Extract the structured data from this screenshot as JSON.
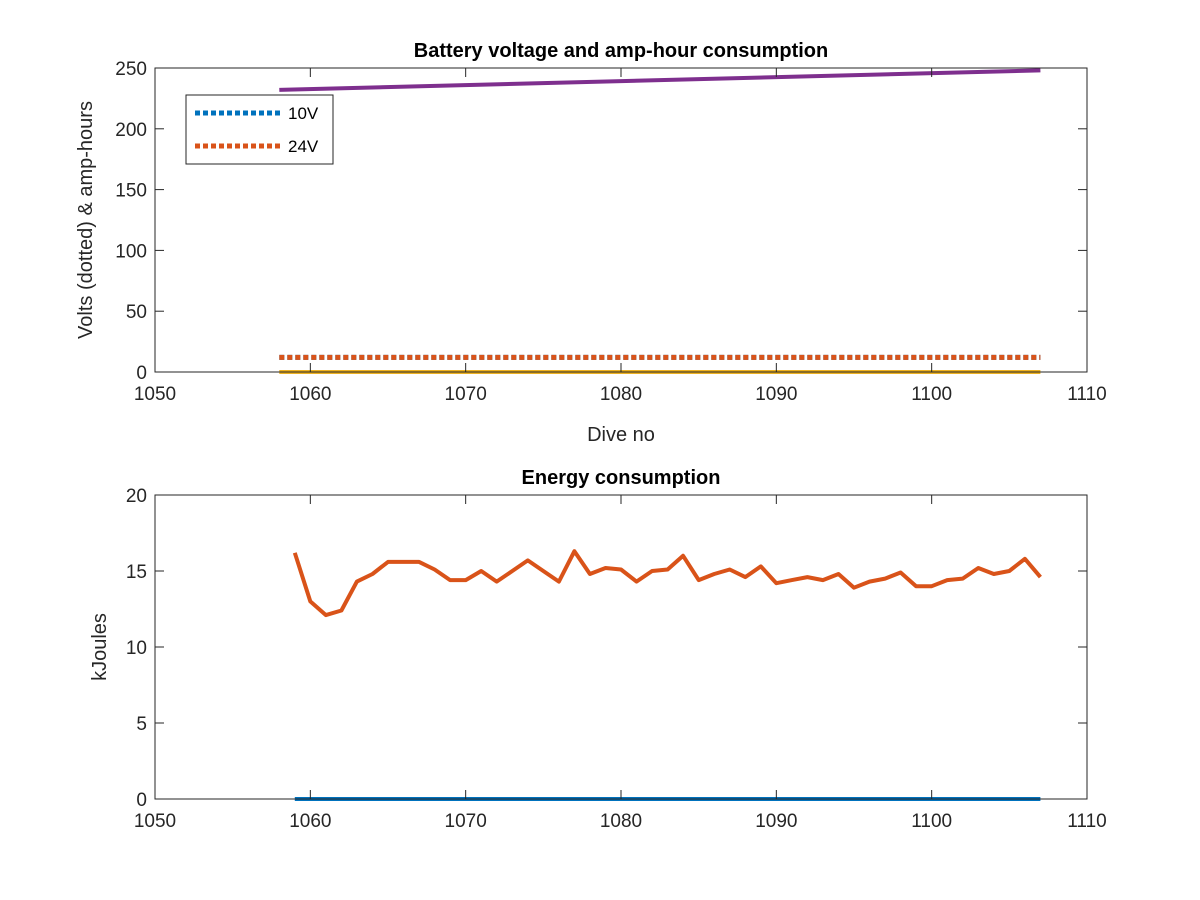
{
  "colors": {
    "blue": "#0072BD",
    "orange": "#D95319",
    "yellow": "#EDB120",
    "purple": "#7E2F8E",
    "axis": "#262626"
  },
  "chart_data": [
    {
      "type": "line",
      "title": "Battery voltage and amp-hour consumption",
      "xlabel": "Dive no",
      "ylabel": "Volts (dotted) & amp-hours",
      "xlim": [
        1050,
        1110
      ],
      "ylim": [
        0,
        250
      ],
      "xticks": [
        1050,
        1060,
        1070,
        1080,
        1090,
        1100,
        1110
      ],
      "yticks": [
        0,
        50,
        100,
        150,
        200,
        250
      ],
      "grid": false,
      "legend": {
        "placement": "top-left",
        "entries": [
          "10V",
          "24V"
        ]
      },
      "series": [
        {
          "name": "10V",
          "style": "dotted",
          "color": "blue",
          "x": [
            1058,
            1107
          ],
          "values": [
            12,
            12
          ]
        },
        {
          "name": "24V",
          "style": "dotted",
          "color": "orange",
          "x": [
            1058,
            1107
          ],
          "values": [
            12,
            12
          ]
        },
        {
          "style": "solid",
          "color": "yellow",
          "x": [
            1058,
            1107
          ],
          "values": [
            0,
            0
          ]
        },
        {
          "style": "solid",
          "color": "purple",
          "x": [
            1058,
            1107
          ],
          "values": [
            232,
            248
          ]
        }
      ]
    },
    {
      "type": "line",
      "title": "Energy consumption",
      "xlabel": "",
      "ylabel": "kJoules",
      "xlim": [
        1050,
        1110
      ],
      "ylim": [
        0,
        20
      ],
      "xticks": [
        1050,
        1060,
        1070,
        1080,
        1090,
        1100,
        1110
      ],
      "yticks": [
        0,
        5,
        10,
        15,
        20
      ],
      "grid": false,
      "series": [
        {
          "style": "solid",
          "color": "blue",
          "x": [
            1059,
            1107
          ],
          "values": [
            0,
            0
          ]
        },
        {
          "style": "solid",
          "color": "orange",
          "x": [
            1059,
            1060,
            1061,
            1062,
            1063,
            1064,
            1065,
            1066,
            1067,
            1068,
            1069,
            1070,
            1071,
            1072,
            1073,
            1074,
            1075,
            1076,
            1077,
            1078,
            1079,
            1080,
            1081,
            1082,
            1083,
            1084,
            1085,
            1086,
            1087,
            1088,
            1089,
            1090,
            1091,
            1092,
            1093,
            1094,
            1095,
            1096,
            1097,
            1098,
            1099,
            1100,
            1101,
            1102,
            1103,
            1104,
            1105,
            1106,
            1107
          ],
          "values": [
            16.2,
            13.0,
            12.1,
            12.4,
            14.3,
            14.8,
            15.6,
            15.6,
            15.6,
            15.1,
            14.4,
            14.4,
            15.0,
            14.3,
            15.0,
            15.7,
            15.0,
            14.3,
            16.3,
            14.8,
            15.2,
            15.1,
            14.3,
            15.0,
            15.1,
            16.0,
            14.4,
            14.8,
            15.1,
            14.6,
            15.3,
            14.2,
            14.4,
            14.6,
            14.4,
            14.8,
            13.9,
            14.3,
            14.5,
            14.9,
            14.0,
            14.0,
            14.4,
            14.5,
            15.2,
            14.8,
            15.0,
            15.8,
            14.6
          ]
        }
      ]
    }
  ]
}
